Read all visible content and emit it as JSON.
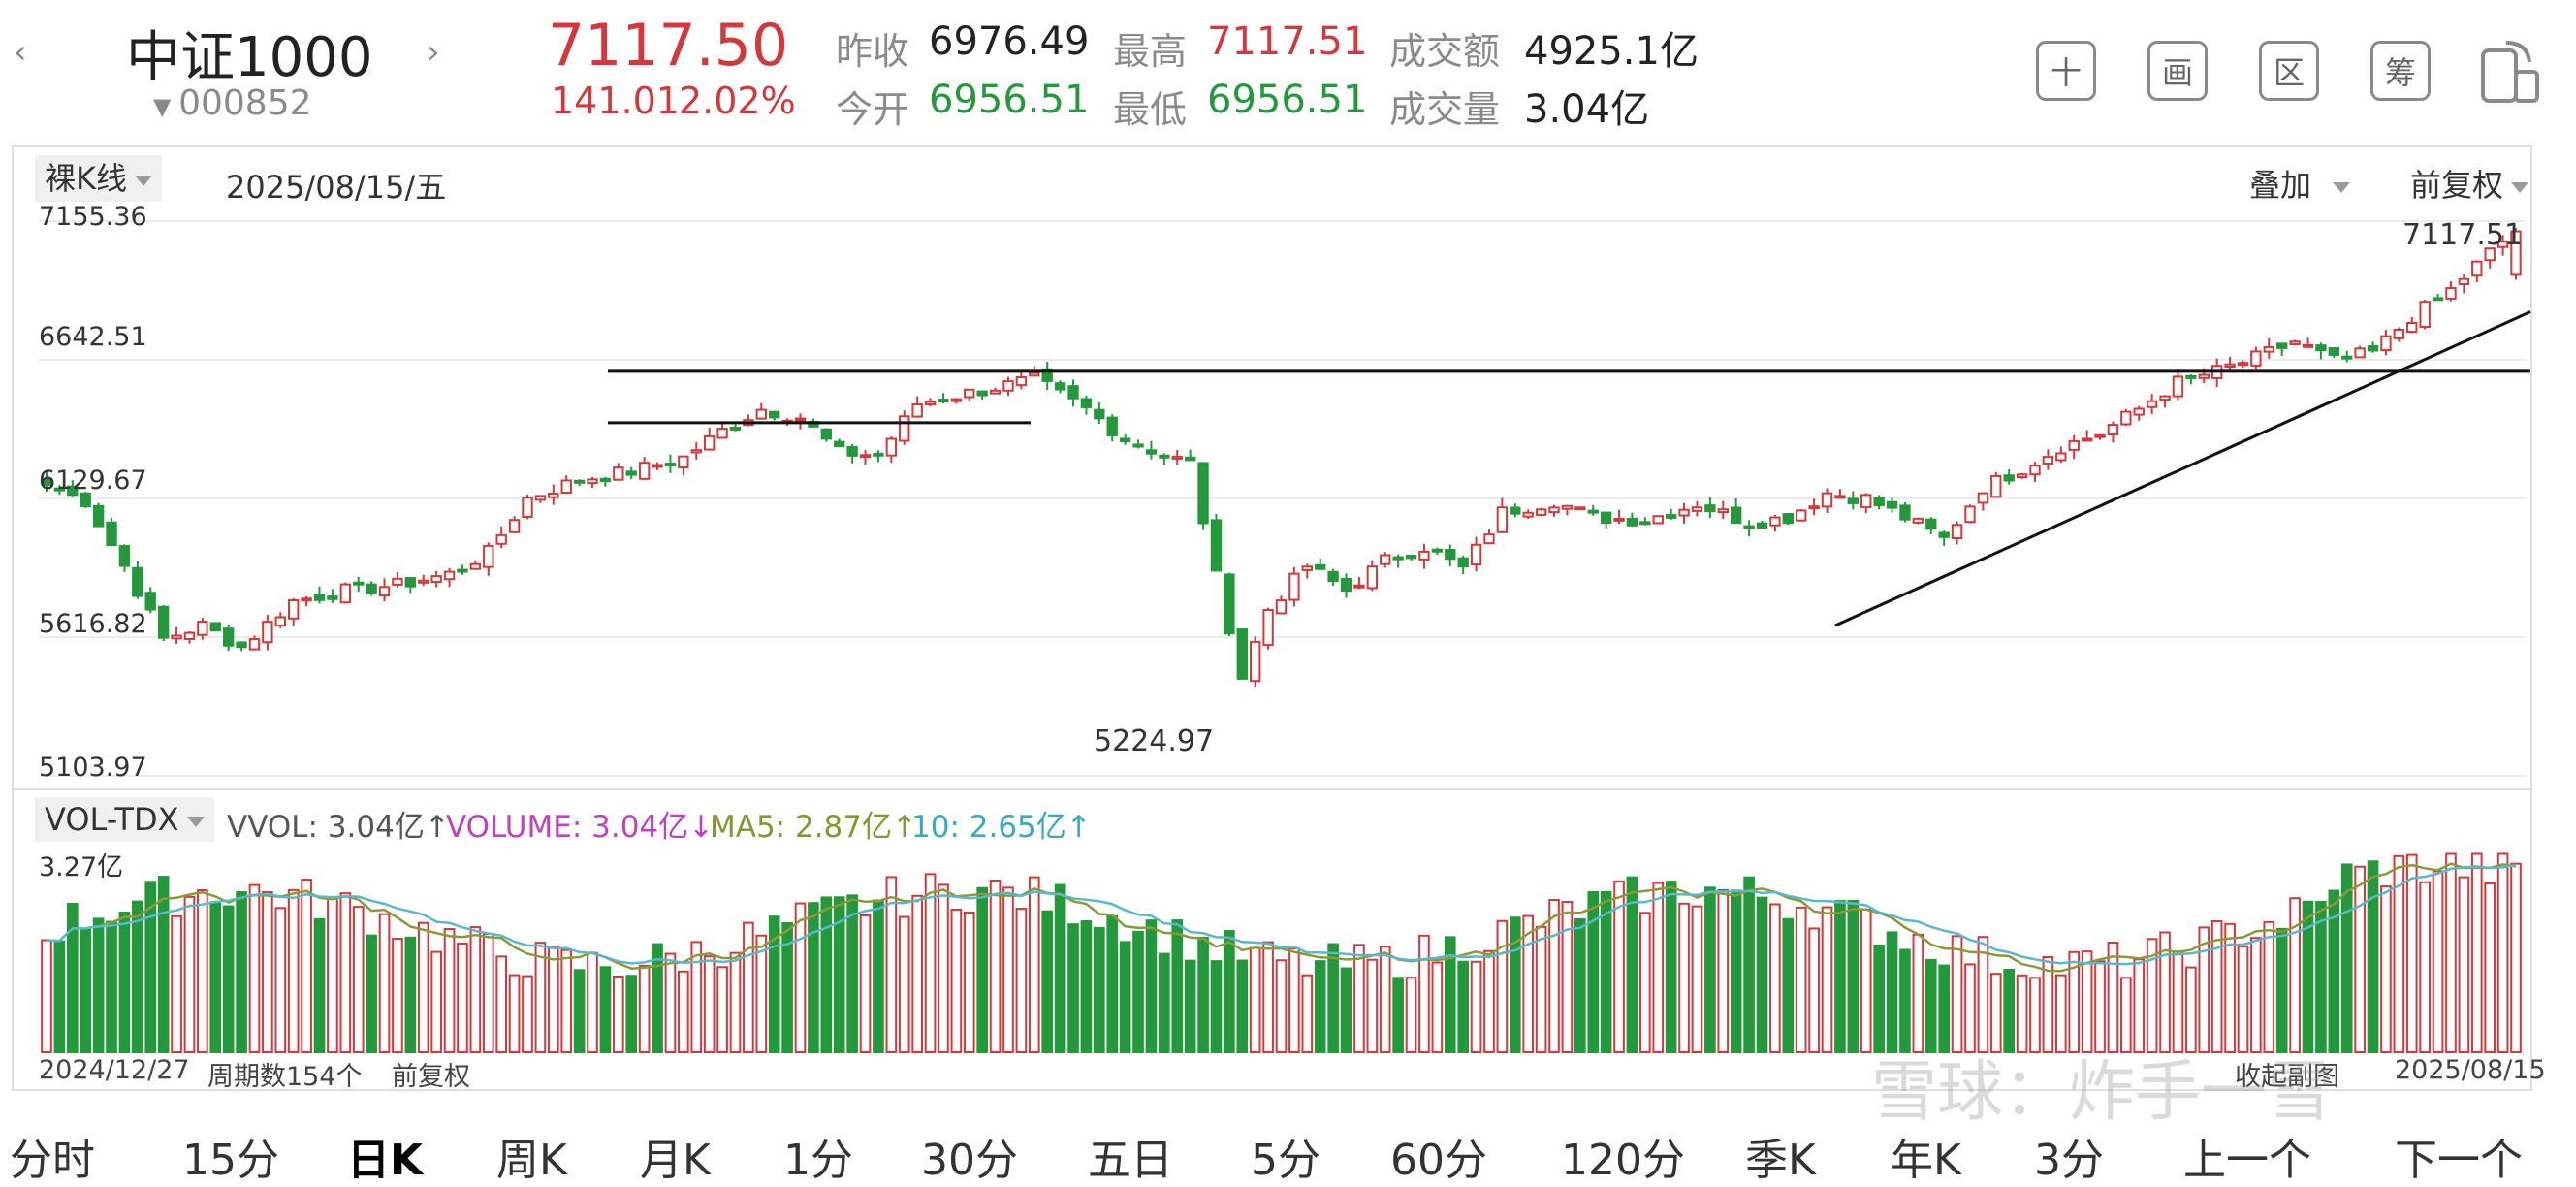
{
  "header": {
    "index_name": "中证1000",
    "index_code": "000852",
    "price": "7117.50",
    "change": "141.01",
    "change_pct": "2.02%",
    "prev_close_label": "昨收",
    "prev_close": "6976.49",
    "open_label": "今开",
    "open": "6956.51",
    "high_label": "最高",
    "high": "7117.51",
    "low_label": "最低",
    "low": "6956.51",
    "turnover_label": "成交额",
    "turnover": "4925.1亿",
    "volume_label": "成交量",
    "volume": "3.04亿",
    "buttons": [
      "十",
      "画",
      "区",
      "筹"
    ]
  },
  "chart_toolbar": {
    "kline_mode": "裸K线",
    "date": "2025/08/15/五",
    "overlay": "叠加",
    "adjust": "前复权"
  },
  "price_axis": {
    "ticks": [
      "7155.36",
      "6642.51",
      "6129.67",
      "5616.82",
      "5103.97"
    ],
    "high_marker": "7117.51",
    "low_marker": "5224.97"
  },
  "volume_header": {
    "indicator": "VOL-TDX",
    "vvol": "VVOL: 3.04亿↑",
    "volume": "VOLUME: 3.04亿↓",
    "ma5": "MA5: 2.87亿↑",
    "ma10": "10: 2.65亿↑",
    "axis_max": "3.27亿"
  },
  "footer_info": {
    "start_date": "2024/12/27",
    "period_count": "周期数154个",
    "adjust": "前复权",
    "end_label": "收起副图",
    "end_date": "2025/08/15",
    "watermark": "雪球：炸手一雪"
  },
  "bottom_tabs": [
    "分时",
    "15分",
    "日K",
    "周K",
    "月K",
    "1分",
    "30分",
    "五日",
    "5分",
    "60分",
    "120分",
    "季K",
    "年K",
    "3分",
    "上一个",
    "下一个"
  ],
  "active_tab": "日K",
  "colors": {
    "up": "#d3393c",
    "down": "#23993b",
    "ma5": "#8a9a3a",
    "ma10": "#5ab8c8",
    "vvol": "#c040c0"
  },
  "chart_data": {
    "type": "candlestick",
    "ylim": [
      5103.97,
      7155.36
    ],
    "anchors": [
      [
        0,
        6180
      ],
      [
        3,
        6120
      ],
      [
        6,
        5880
      ],
      [
        9,
        5610
      ],
      [
        12,
        5660
      ],
      [
        15,
        5580
      ],
      [
        19,
        5750
      ],
      [
        23,
        5790
      ],
      [
        27,
        5810
      ],
      [
        31,
        5850
      ],
      [
        34,
        5930
      ],
      [
        37,
        6130
      ],
      [
        41,
        6200
      ],
      [
        45,
        6230
      ],
      [
        49,
        6280
      ],
      [
        52,
        6380
      ],
      [
        55,
        6460
      ],
      [
        58,
        6430
      ],
      [
        61,
        6300
      ],
      [
        64,
        6290
      ],
      [
        67,
        6480
      ],
      [
        72,
        6530
      ],
      [
        76,
        6570
      ],
      [
        80,
        6460
      ],
      [
        83,
        6350
      ],
      [
        86,
        6290
      ],
      [
        88,
        6260
      ],
      [
        90,
        5840
      ],
      [
        92,
        5470
      ],
      [
        94,
        5720
      ],
      [
        97,
        5880
      ],
      [
        100,
        5790
      ],
      [
        103,
        5900
      ],
      [
        106,
        5950
      ],
      [
        109,
        5870
      ],
      [
        112,
        6080
      ],
      [
        116,
        6120
      ],
      [
        119,
        6060
      ],
      [
        123,
        6050
      ],
      [
        127,
        6110
      ],
      [
        131,
        6040
      ],
      [
        134,
        6060
      ],
      [
        137,
        6150
      ],
      [
        140,
        6130
      ],
      [
        143,
        6060
      ],
      [
        146,
        5980
      ],
      [
        149,
        6170
      ],
      [
        152,
        6240
      ],
      [
        155,
        6320
      ],
      [
        158,
        6370
      ],
      [
        161,
        6460
      ],
      [
        164,
        6560
      ],
      [
        167,
        6600
      ],
      [
        170,
        6650
      ],
      [
        173,
        6710
      ],
      [
        176,
        6640
      ],
      [
        179,
        6670
      ],
      [
        182,
        6800
      ],
      [
        185,
        6900
      ],
      [
        188,
        7040
      ],
      [
        190,
        7117.5
      ]
    ],
    "volume_ylim": [
      0,
      3.27
    ],
    "volume_last": 3.04,
    "ma5_last": 2.87,
    "ma10_last": 2.65
  }
}
